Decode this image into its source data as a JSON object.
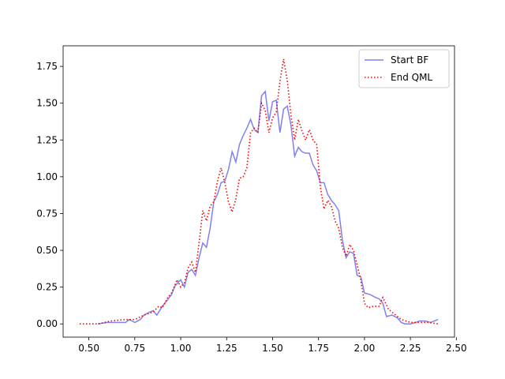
{
  "chart_data": {
    "type": "line",
    "title": "",
    "xlabel": "",
    "ylabel": "",
    "xlim": [
      0.36,
      2.49
    ],
    "ylim": [
      -0.09,
      1.89
    ],
    "xticks": [
      0.5,
      0.75,
      1.0,
      1.25,
      1.5,
      1.75,
      2.0,
      2.25,
      2.5
    ],
    "yticks": [
      0.0,
      0.25,
      0.5,
      0.75,
      1.0,
      1.25,
      1.5,
      1.75
    ],
    "grid": false,
    "legend_position": "top-right",
    "series": [
      {
        "name": "Start BF",
        "color": "#8080f0",
        "style": "solid",
        "x": [
          0.55,
          0.6,
          0.65,
          0.7,
          0.72,
          0.75,
          0.78,
          0.8,
          0.83,
          0.85,
          0.87,
          0.9,
          0.92,
          0.95,
          0.97,
          1.0,
          1.02,
          1.04,
          1.06,
          1.08,
          1.1,
          1.12,
          1.14,
          1.16,
          1.18,
          1.2,
          1.22,
          1.24,
          1.26,
          1.28,
          1.3,
          1.32,
          1.34,
          1.36,
          1.38,
          1.4,
          1.42,
          1.44,
          1.46,
          1.48,
          1.5,
          1.52,
          1.54,
          1.56,
          1.58,
          1.6,
          1.62,
          1.64,
          1.66,
          1.68,
          1.7,
          1.72,
          1.74,
          1.76,
          1.78,
          1.8,
          1.82,
          1.84,
          1.86,
          1.88,
          1.9,
          1.92,
          1.94,
          1.96,
          1.98,
          2.0,
          2.03,
          2.06,
          2.08,
          2.1,
          2.12,
          2.15,
          2.18,
          2.2,
          2.22,
          2.25,
          2.28,
          2.3,
          2.33,
          2.36,
          2.4
        ],
        "y": [
          0.0,
          0.01,
          0.01,
          0.01,
          0.03,
          0.01,
          0.03,
          0.06,
          0.08,
          0.09,
          0.06,
          0.12,
          0.15,
          0.2,
          0.26,
          0.3,
          0.25,
          0.35,
          0.37,
          0.33,
          0.45,
          0.55,
          0.52,
          0.65,
          0.83,
          0.88,
          0.96,
          0.97,
          1.05,
          1.17,
          1.1,
          1.22,
          1.28,
          1.33,
          1.39,
          1.32,
          1.3,
          1.55,
          1.58,
          1.38,
          1.51,
          1.52,
          1.3,
          1.46,
          1.48,
          1.35,
          1.14,
          1.2,
          1.17,
          1.16,
          1.16,
          1.08,
          1.04,
          0.96,
          0.96,
          0.88,
          0.84,
          0.81,
          0.77,
          0.57,
          0.45,
          0.49,
          0.48,
          0.33,
          0.32,
          0.21,
          0.2,
          0.18,
          0.17,
          0.14,
          0.05,
          0.06,
          0.04,
          0.01,
          0.0,
          0.0,
          0.01,
          0.02,
          0.02,
          0.01,
          0.03
        ]
      },
      {
        "name": "End QML",
        "color": "#ff0000",
        "style": "dotted",
        "x": [
          0.45,
          0.55,
          0.62,
          0.7,
          0.75,
          0.8,
          0.85,
          0.88,
          0.9,
          0.93,
          0.95,
          0.98,
          1.0,
          1.02,
          1.04,
          1.06,
          1.08,
          1.1,
          1.12,
          1.14,
          1.16,
          1.18,
          1.2,
          1.22,
          1.24,
          1.26,
          1.28,
          1.3,
          1.32,
          1.34,
          1.36,
          1.38,
          1.4,
          1.42,
          1.44,
          1.46,
          1.48,
          1.5,
          1.52,
          1.54,
          1.56,
          1.58,
          1.6,
          1.62,
          1.64,
          1.66,
          1.68,
          1.7,
          1.72,
          1.74,
          1.76,
          1.78,
          1.8,
          1.82,
          1.84,
          1.86,
          1.88,
          1.9,
          1.92,
          1.94,
          1.96,
          1.98,
          2.0,
          2.02,
          2.05,
          2.08,
          2.1,
          2.13,
          2.16,
          2.2,
          2.25,
          2.3,
          2.35,
          2.4
        ],
        "y": [
          0.0,
          0.0,
          0.02,
          0.03,
          0.03,
          0.06,
          0.08,
          0.12,
          0.11,
          0.18,
          0.21,
          0.3,
          0.25,
          0.28,
          0.38,
          0.42,
          0.35,
          0.55,
          0.77,
          0.7,
          0.8,
          0.83,
          0.97,
          1.06,
          0.96,
          0.83,
          0.76,
          0.85,
          0.99,
          1.0,
          1.06,
          1.3,
          1.33,
          1.3,
          1.5,
          1.45,
          1.3,
          1.4,
          1.44,
          1.65,
          1.8,
          1.65,
          1.42,
          1.25,
          1.39,
          1.31,
          1.25,
          1.32,
          1.25,
          1.22,
          0.93,
          0.78,
          0.84,
          0.8,
          0.7,
          0.65,
          0.52,
          0.46,
          0.54,
          0.5,
          0.4,
          0.3,
          0.14,
          0.11,
          0.12,
          0.12,
          0.18,
          0.1,
          0.07,
          0.03,
          0.01,
          0.01,
          0.01,
          0.0
        ]
      }
    ]
  }
}
